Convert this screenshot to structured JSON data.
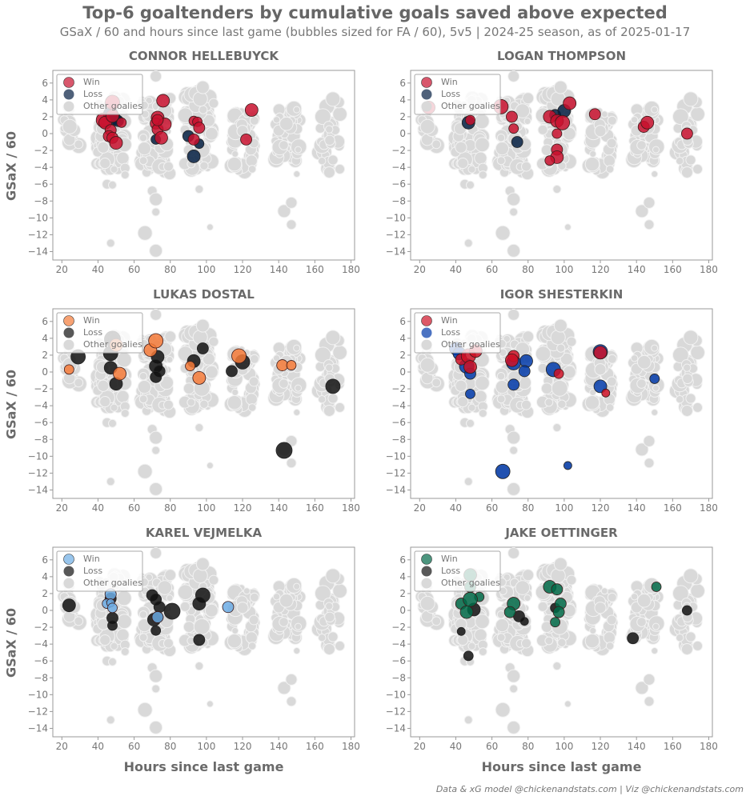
{
  "header": {
    "title": "Top-6 goaltenders by cumulative goals saved above expected",
    "subtitle": "GSaX / 60 and hours since last game (bubbles sized for FA / 60), 5v5 | 2024-25 season, as of 2025-01-17"
  },
  "footer": {
    "credit": "Data & xG model @chickenandstats.com | Viz @chickenandstats.com"
  },
  "axes": {
    "ylabel": "GSaX / 60",
    "xlabel": "Hours since last game"
  },
  "chart_data": {
    "type": "scatter",
    "title": "Top-6 goaltenders by cumulative goals saved above expected",
    "xlabel": "Hours since last game",
    "ylabel": "GSaX / 60",
    "xlim": [
      15,
      182
    ],
    "ylim": [
      -15,
      7.5
    ],
    "xticks": [
      20,
      40,
      60,
      80,
      100,
      120,
      140,
      160,
      180
    ],
    "yticks": [
      6,
      4,
      2,
      0,
      -2,
      -4,
      -6,
      -8,
      -10,
      -12,
      -14
    ],
    "legend": [
      "Win",
      "Loss",
      "Other goalies"
    ],
    "legend_position": "upper left",
    "grid": false,
    "other_goalies_color": "#d9d9d9",
    "panels": [
      {
        "goalie": "CONNOR HELLEBUYCK",
        "win_color": "#c8102e",
        "loss_color": "#041e42",
        "wins": [
          [
            48,
            3.7,
            9
          ],
          [
            43,
            1.6,
            9
          ],
          [
            44,
            1.3,
            8
          ],
          [
            47,
            0.4,
            7
          ],
          [
            46,
            -0.3,
            7
          ],
          [
            48,
            -0.5,
            7
          ],
          [
            50,
            -1.1,
            8
          ],
          [
            48,
            2.1,
            8
          ],
          [
            53,
            1.3,
            6
          ],
          [
            76,
            3.9,
            8
          ],
          [
            73,
            1.9,
            8
          ],
          [
            72,
            1.2,
            7
          ],
          [
            73,
            0.5,
            7
          ],
          [
            75,
            -0.5,
            8
          ],
          [
            77,
            1.1,
            8
          ],
          [
            73,
            1.6,
            7
          ],
          [
            93,
            1.5,
            6
          ],
          [
            95,
            1.4,
            6
          ],
          [
            96,
            0.7,
            7
          ],
          [
            93,
            -0.7,
            7
          ],
          [
            125,
            2.8,
            8
          ],
          [
            122,
            -0.7,
            7
          ]
        ],
        "losses": [
          [
            47,
            2.3,
            9
          ],
          [
            49,
            1.8,
            8
          ],
          [
            51,
            1.5,
            7
          ],
          [
            72,
            -0.7,
            6
          ],
          [
            90,
            -0.3,
            7
          ],
          [
            96,
            -1.2,
            6
          ],
          [
            93,
            -2.7,
            8
          ]
        ]
      },
      {
        "goalie": "LOGAN THOMPSON",
        "win_color": "#c8102e",
        "loss_color": "#041e42",
        "wins": [
          [
            25,
            3.1,
            8
          ],
          [
            48,
            1.6,
            6
          ],
          [
            65,
            3.2,
            9
          ],
          [
            71,
            2.0,
            7
          ],
          [
            72,
            0.6,
            6
          ],
          [
            92,
            2.0,
            8
          ],
          [
            96,
            1.5,
            8
          ],
          [
            99,
            1.3,
            9
          ],
          [
            103,
            3.6,
            8
          ],
          [
            96,
            0.0,
            6
          ],
          [
            96,
            -1.9,
            7
          ],
          [
            96,
            -2.8,
            8
          ],
          [
            92,
            -3.2,
            6
          ],
          [
            117,
            2.3,
            7
          ],
          [
            144,
            0.8,
            7
          ],
          [
            146,
            1.3,
            8
          ],
          [
            168,
            0.0,
            7
          ]
        ],
        "losses": [
          [
            47,
            1.3,
            8
          ],
          [
            74,
            -1.0,
            7
          ],
          [
            95,
            2.2,
            7
          ],
          [
            100,
            2.7,
            8
          ]
        ]
      },
      {
        "goalie": "LUKAS DOSTAL",
        "win_color": "#f47a38",
        "loss_color": "#111111",
        "wins": [
          [
            24,
            0.3,
            6
          ],
          [
            50,
            3.2,
            8
          ],
          [
            52,
            -0.2,
            8
          ],
          [
            69,
            2.6,
            8
          ],
          [
            72,
            3.7,
            9
          ],
          [
            91,
            0.7,
            6
          ],
          [
            96,
            -0.7,
            8
          ],
          [
            118,
            1.9,
            9
          ],
          [
            142,
            0.8,
            7
          ],
          [
            147,
            0.8,
            6
          ]
        ],
        "losses": [
          [
            29,
            1.8,
            9
          ],
          [
            48,
            3.9,
            10
          ],
          [
            47,
            2.2,
            9
          ],
          [
            47,
            0.5,
            8
          ],
          [
            50,
            -1.4,
            8
          ],
          [
            73,
            1.8,
            8
          ],
          [
            72,
            0.7,
            8
          ],
          [
            74,
            0.1,
            7
          ],
          [
            72,
            -0.6,
            7
          ],
          [
            93,
            1.3,
            8
          ],
          [
            98,
            2.8,
            7
          ],
          [
            114,
            0.1,
            7
          ],
          [
            120,
            1.2,
            9
          ],
          [
            143,
            -9.3,
            10
          ],
          [
            170,
            -1.7,
            9
          ]
        ]
      },
      {
        "goalie": "IGOR SHESTERKIN",
        "win_color": "#ce1126",
        "loss_color": "#0038a8",
        "wins": [
          [
            43,
            1.5,
            7
          ],
          [
            47,
            1.9,
            9
          ],
          [
            51,
            2.5,
            8
          ],
          [
            48,
            0.6,
            8
          ],
          [
            72,
            1.9,
            7
          ],
          [
            71,
            1.4,
            8
          ],
          [
            97,
            -0.2,
            6
          ],
          [
            123,
            -2.5,
            5
          ],
          [
            120,
            2.3,
            8
          ]
        ],
        "losses": [
          [
            40,
            2.8,
            8
          ],
          [
            42,
            2.2,
            8
          ],
          [
            46,
            0.7,
            9
          ],
          [
            48,
            -0.2,
            7
          ],
          [
            48,
            -2.6,
            6
          ],
          [
            72,
            1.1,
            9
          ],
          [
            72,
            -1.5,
            7
          ],
          [
            79,
            1.3,
            8
          ],
          [
            78,
            0.1,
            7
          ],
          [
            94,
            0.3,
            9
          ],
          [
            120,
            2.4,
            9
          ],
          [
            120,
            -1.7,
            8
          ],
          [
            150,
            -0.8,
            6
          ],
          [
            66,
            -11.8,
            9
          ],
          [
            102,
            -11.1,
            5
          ]
        ]
      },
      {
        "goalie": "KAREL VEJMELKA",
        "win_color": "#6cace4",
        "loss_color": "#111111",
        "wins": [
          [
            47,
            1.9,
            7
          ],
          [
            45,
            0.8,
            6
          ],
          [
            47,
            0.9,
            5
          ],
          [
            48,
            0.3,
            6
          ],
          [
            73,
            -0.8,
            7
          ],
          [
            112,
            0.4,
            7
          ]
        ],
        "losses": [
          [
            24,
            0.6,
            8
          ],
          [
            47,
            1.4,
            7
          ],
          [
            48,
            -0.9,
            7
          ],
          [
            48,
            -1.8,
            6
          ],
          [
            70,
            1.8,
            7
          ],
          [
            72,
            1.3,
            7
          ],
          [
            74,
            0.4,
            7
          ],
          [
            71,
            -1.1,
            8
          ],
          [
            73,
            -0.8,
            7
          ],
          [
            72,
            -2.4,
            6
          ],
          [
            81,
            -0.1,
            10
          ],
          [
            98,
            1.8,
            9
          ],
          [
            96,
            0.8,
            8
          ],
          [
            96,
            -3.5,
            7
          ]
        ]
      },
      {
        "goalie": "JAKE OETTINGER",
        "win_color": "#006847",
        "loss_color": "#111111",
        "wins": [
          [
            48,
            4.2,
            8
          ],
          [
            48,
            2.8,
            7
          ],
          [
            53,
            1.6,
            6
          ],
          [
            43,
            0.8,
            7
          ],
          [
            48,
            1.3,
            9
          ],
          [
            46,
            -0.2,
            8
          ],
          [
            72,
            0.8,
            8
          ],
          [
            70,
            -0.2,
            7
          ],
          [
            92,
            2.8,
            8
          ],
          [
            96,
            2.5,
            7
          ],
          [
            98,
            0.8,
            7
          ],
          [
            97,
            -0.2,
            7
          ],
          [
            95,
            -1.4,
            6
          ],
          [
            151,
            2.8,
            6
          ]
        ],
        "losses": [
          [
            50,
            0.1,
            8
          ],
          [
            43,
            -2.5,
            5
          ],
          [
            47,
            -5.4,
            6
          ],
          [
            75,
            -0.7,
            7
          ],
          [
            78,
            -1.3,
            5
          ],
          [
            95,
            0.3,
            6
          ],
          [
            138,
            -3.3,
            7
          ],
          [
            168,
            0.0,
            6
          ]
        ]
      }
    ]
  }
}
